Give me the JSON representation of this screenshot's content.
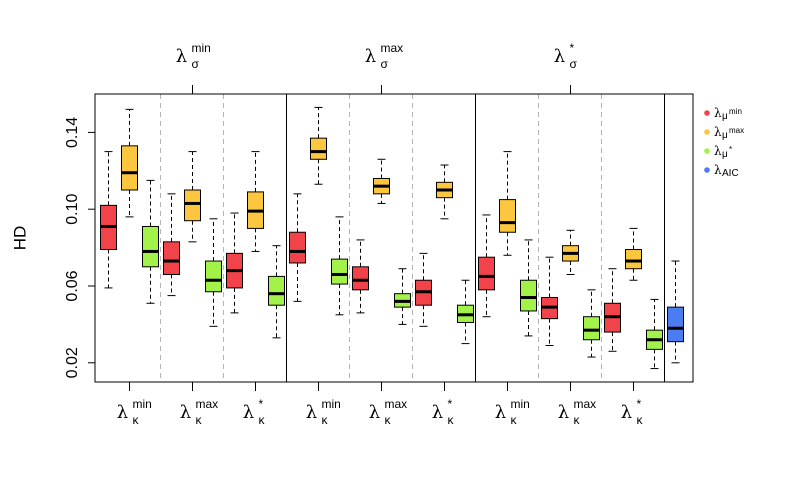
{
  "chart_data": {
    "type": "boxplot",
    "ylabel": "HD",
    "ylim": [
      0.01,
      0.16
    ],
    "yticks": [
      0.02,
      0.06,
      0.1,
      0.14
    ],
    "ytick_labels": [
      "0.02",
      "0.06",
      "0.10",
      "0.14"
    ],
    "colors": {
      "min": "#f2434b",
      "max": "#fcc63f",
      "star": "#a3f24a",
      "aic": "#4b7cf2"
    },
    "top_groups": [
      {
        "symbol": "λ",
        "sub": "σ",
        "sup": "min"
      },
      {
        "symbol": "λ",
        "sub": "σ",
        "sup": "max"
      },
      {
        "symbol": "λ",
        "sub": "σ",
        "sup": "*"
      }
    ],
    "bottom_groups": [
      {
        "symbol": "λ",
        "sub": "κ",
        "sup": "min"
      },
      {
        "symbol": "λ",
        "sub": "κ",
        "sup": "max"
      },
      {
        "symbol": "λ",
        "sub": "κ",
        "sup": "*"
      },
      {
        "symbol": "λ",
        "sub": "κ",
        "sup": "min"
      },
      {
        "symbol": "λ",
        "sub": "κ",
        "sup": "max"
      },
      {
        "symbol": "λ",
        "sub": "κ",
        "sup": "*"
      },
      {
        "symbol": "λ",
        "sub": "κ",
        "sup": "min"
      },
      {
        "symbol": "λ",
        "sub": "κ",
        "sup": "max"
      },
      {
        "symbol": "λ",
        "sub": "κ",
        "sup": "*"
      }
    ],
    "legend": {
      "position": "top-right",
      "entries": [
        {
          "symbol": "λ",
          "sub": "μ",
          "sup": "min",
          "color_key": "min"
        },
        {
          "symbol": "λ",
          "sub": "μ",
          "sup": "max",
          "color_key": "max"
        },
        {
          "symbol": "λ",
          "sub": "μ",
          "sup": "*",
          "color_key": "star"
        },
        {
          "symbol": "λ",
          "sub": "AIC",
          "sup": "",
          "color_key": "aic"
        }
      ]
    },
    "boxes": [
      {
        "sigma": "min",
        "kappa": "min",
        "mu": "min",
        "whisker_low": 0.059,
        "q1": 0.079,
        "median": 0.091,
        "q3": 0.102,
        "whisker_high": 0.13
      },
      {
        "sigma": "min",
        "kappa": "min",
        "mu": "max",
        "whisker_low": 0.096,
        "q1": 0.11,
        "median": 0.119,
        "q3": 0.133,
        "whisker_high": 0.152
      },
      {
        "sigma": "min",
        "kappa": "min",
        "mu": "star",
        "whisker_low": 0.051,
        "q1": 0.07,
        "median": 0.078,
        "q3": 0.091,
        "whisker_high": 0.115
      },
      {
        "sigma": "min",
        "kappa": "max",
        "mu": "min",
        "whisker_low": 0.055,
        "q1": 0.066,
        "median": 0.073,
        "q3": 0.083,
        "whisker_high": 0.108
      },
      {
        "sigma": "min",
        "kappa": "max",
        "mu": "max",
        "whisker_low": 0.083,
        "q1": 0.094,
        "median": 0.103,
        "q3": 0.11,
        "whisker_high": 0.13
      },
      {
        "sigma": "min",
        "kappa": "max",
        "mu": "star",
        "whisker_low": 0.039,
        "q1": 0.057,
        "median": 0.063,
        "q3": 0.073,
        "whisker_high": 0.095
      },
      {
        "sigma": "min",
        "kappa": "star",
        "mu": "min",
        "whisker_low": 0.046,
        "q1": 0.059,
        "median": 0.068,
        "q3": 0.077,
        "whisker_high": 0.098
      },
      {
        "sigma": "min",
        "kappa": "star",
        "mu": "max",
        "whisker_low": 0.078,
        "q1": 0.09,
        "median": 0.099,
        "q3": 0.109,
        "whisker_high": 0.13
      },
      {
        "sigma": "min",
        "kappa": "star",
        "mu": "star",
        "whisker_low": 0.033,
        "q1": 0.05,
        "median": 0.056,
        "q3": 0.065,
        "whisker_high": 0.081
      },
      {
        "sigma": "max",
        "kappa": "min",
        "mu": "min",
        "whisker_low": 0.052,
        "q1": 0.072,
        "median": 0.078,
        "q3": 0.088,
        "whisker_high": 0.108
      },
      {
        "sigma": "max",
        "kappa": "min",
        "mu": "max",
        "whisker_low": 0.113,
        "q1": 0.126,
        "median": 0.13,
        "q3": 0.137,
        "whisker_high": 0.153
      },
      {
        "sigma": "max",
        "kappa": "min",
        "mu": "star",
        "whisker_low": 0.045,
        "q1": 0.061,
        "median": 0.066,
        "q3": 0.074,
        "whisker_high": 0.096
      },
      {
        "sigma": "max",
        "kappa": "max",
        "mu": "min",
        "whisker_low": 0.046,
        "q1": 0.058,
        "median": 0.063,
        "q3": 0.07,
        "whisker_high": 0.084
      },
      {
        "sigma": "max",
        "kappa": "max",
        "mu": "max",
        "whisker_low": 0.103,
        "q1": 0.108,
        "median": 0.112,
        "q3": 0.116,
        "whisker_high": 0.126
      },
      {
        "sigma": "max",
        "kappa": "max",
        "mu": "star",
        "whisker_low": 0.04,
        "q1": 0.049,
        "median": 0.052,
        "q3": 0.056,
        "whisker_high": 0.069
      },
      {
        "sigma": "max",
        "kappa": "star",
        "mu": "min",
        "whisker_low": 0.039,
        "q1": 0.05,
        "median": 0.057,
        "q3": 0.063,
        "whisker_high": 0.077
      },
      {
        "sigma": "max",
        "kappa": "star",
        "mu": "max",
        "whisker_low": 0.095,
        "q1": 0.106,
        "median": 0.11,
        "q3": 0.114,
        "whisker_high": 0.123
      },
      {
        "sigma": "max",
        "kappa": "star",
        "mu": "star",
        "whisker_low": 0.03,
        "q1": 0.041,
        "median": 0.045,
        "q3": 0.05,
        "whisker_high": 0.063
      },
      {
        "sigma": "star",
        "kappa": "min",
        "mu": "min",
        "whisker_low": 0.044,
        "q1": 0.058,
        "median": 0.065,
        "q3": 0.075,
        "whisker_high": 0.097
      },
      {
        "sigma": "star",
        "kappa": "min",
        "mu": "max",
        "whisker_low": 0.076,
        "q1": 0.088,
        "median": 0.093,
        "q3": 0.105,
        "whisker_high": 0.13
      },
      {
        "sigma": "star",
        "kappa": "min",
        "mu": "star",
        "whisker_low": 0.034,
        "q1": 0.047,
        "median": 0.054,
        "q3": 0.063,
        "whisker_high": 0.084
      },
      {
        "sigma": "star",
        "kappa": "max",
        "mu": "min",
        "whisker_low": 0.029,
        "q1": 0.043,
        "median": 0.049,
        "q3": 0.054,
        "whisker_high": 0.075
      },
      {
        "sigma": "star",
        "kappa": "max",
        "mu": "max",
        "whisker_low": 0.066,
        "q1": 0.073,
        "median": 0.077,
        "q3": 0.081,
        "whisker_high": 0.089
      },
      {
        "sigma": "star",
        "kappa": "max",
        "mu": "star",
        "whisker_low": 0.023,
        "q1": 0.032,
        "median": 0.037,
        "q3": 0.044,
        "whisker_high": 0.058
      },
      {
        "sigma": "star",
        "kappa": "star",
        "mu": "min",
        "whisker_low": 0.026,
        "q1": 0.036,
        "median": 0.044,
        "q3": 0.051,
        "whisker_high": 0.069
      },
      {
        "sigma": "star",
        "kappa": "star",
        "mu": "max",
        "whisker_low": 0.063,
        "q1": 0.069,
        "median": 0.073,
        "q3": 0.079,
        "whisker_high": 0.09
      },
      {
        "sigma": "star",
        "kappa": "star",
        "mu": "star",
        "whisker_low": 0.017,
        "q1": 0.027,
        "median": 0.032,
        "q3": 0.037,
        "whisker_high": 0.053
      },
      {
        "sigma": "",
        "kappa": "",
        "mu": "aic",
        "whisker_low": 0.02,
        "q1": 0.031,
        "median": 0.038,
        "q3": 0.049,
        "whisker_high": 0.073
      }
    ]
  }
}
